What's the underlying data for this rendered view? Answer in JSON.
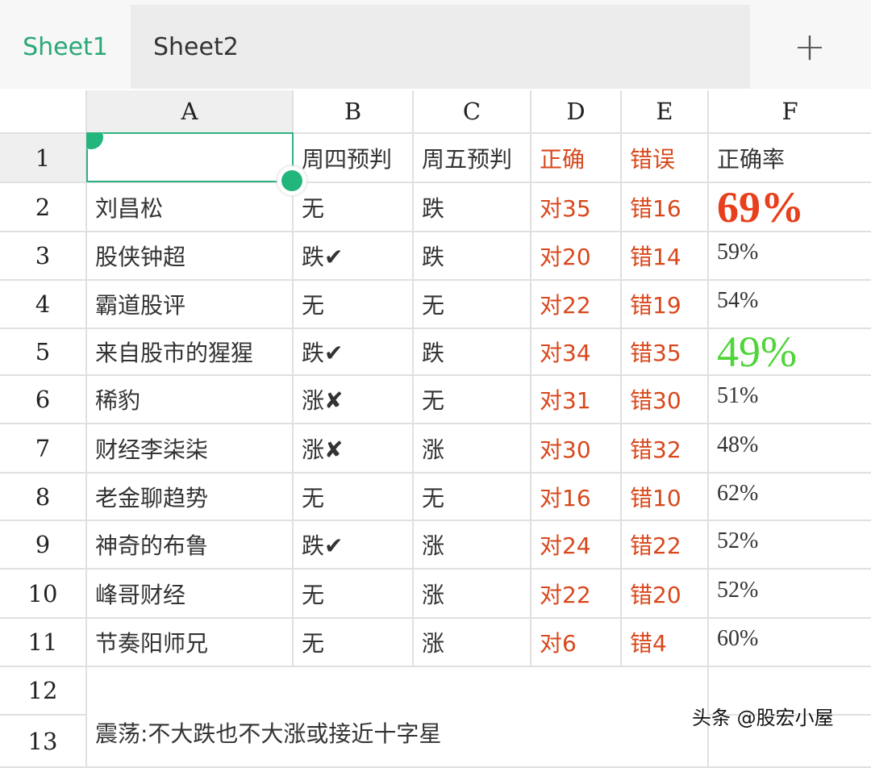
{
  "tabs": [
    {
      "label": "Sheet1",
      "active": true
    },
    {
      "label": "Sheet2",
      "active": false
    }
  ],
  "add_sheet_icon": "plus-icon",
  "accent_color": "#2aa876",
  "columns": [
    "A",
    "B",
    "C",
    "D",
    "E",
    "F"
  ],
  "row_numbers": [
    "1",
    "2",
    "3",
    "4",
    "5",
    "6",
    "7",
    "8",
    "9",
    "10",
    "11",
    "12",
    "13"
  ],
  "header_row": {
    "A": "",
    "B": "周四预判",
    "C": "周五预判",
    "D": "正确",
    "E": "错误",
    "F": "正确率"
  },
  "rows": [
    {
      "A": "刘昌松",
      "B": "无",
      "C": "跌",
      "D": "对35",
      "E": "错16",
      "F": "69%"
    },
    {
      "A": "股侠钟超",
      "B": "跌✔",
      "C": "跌",
      "D": "对20",
      "E": "错14",
      "F": "59%"
    },
    {
      "A": "霸道股评",
      "B": "无",
      "C": "无",
      "D": "对22",
      "E": "错19",
      "F": "54%"
    },
    {
      "A": "来自股市的猩猩",
      "B": "跌✔",
      "C": "跌",
      "D": "对34",
      "E": "错35",
      "F": "49%"
    },
    {
      "A": "稀豹",
      "B": "涨✘",
      "C": "无",
      "D": "对31",
      "E": "错30",
      "F": "51%"
    },
    {
      "A": "财经李柒柒",
      "B": "涨✘",
      "C": "涨",
      "D": "对30",
      "E": "错32",
      "F": "48%"
    },
    {
      "A": "老金聊趋势",
      "B": "无",
      "C": "无",
      "D": "对16",
      "E": "错10",
      "F": "62%"
    },
    {
      "A": "神奇的布鲁",
      "B": "跌✔",
      "C": "涨",
      "D": "对24",
      "E": "错22",
      "F": "52%"
    },
    {
      "A": "峰哥财经",
      "B": "无",
      "C": "涨",
      "D": "对22",
      "E": "错20",
      "F": "52%"
    },
    {
      "A": "节奏阳师兄",
      "B": "无",
      "C": "涨",
      "D": "对6",
      "E": "错4",
      "F": "60%"
    }
  ],
  "note": "震荡:不大跌也不大涨或接近十字星",
  "highlight": {
    "max_color": "#e8401c",
    "min_color": "#4fd43a",
    "text_red": "#d8481c"
  },
  "watermark": "头条 @股宏小屋"
}
